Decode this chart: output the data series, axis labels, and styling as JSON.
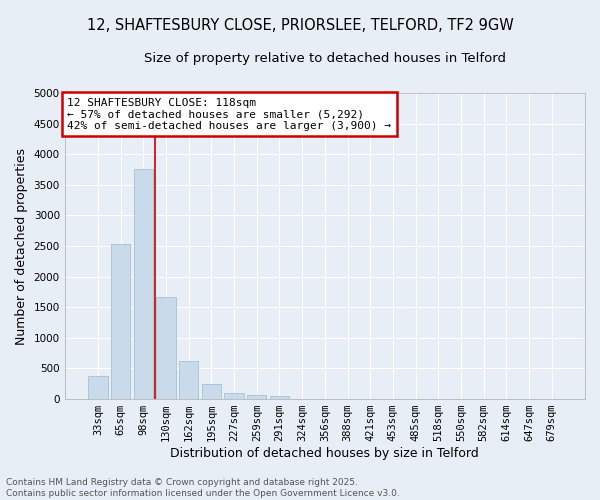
{
  "title_line1": "12, SHAFTESBURY CLOSE, PRIORSLEE, TELFORD, TF2 9GW",
  "title_line2": "Size of property relative to detached houses in Telford",
  "xlabel": "Distribution of detached houses by size in Telford",
  "ylabel": "Number of detached properties",
  "categories": [
    "33sqm",
    "65sqm",
    "98sqm",
    "130sqm",
    "162sqm",
    "195sqm",
    "227sqm",
    "259sqm",
    "291sqm",
    "324sqm",
    "356sqm",
    "388sqm",
    "421sqm",
    "453sqm",
    "485sqm",
    "518sqm",
    "550sqm",
    "582sqm",
    "614sqm",
    "647sqm",
    "679sqm"
  ],
  "values": [
    370,
    2540,
    3760,
    1660,
    620,
    240,
    105,
    60,
    45,
    0,
    0,
    0,
    0,
    0,
    0,
    0,
    0,
    0,
    0,
    0,
    0
  ],
  "bar_color": "#c9daea",
  "bar_edge_color": "#9bb8cc",
  "vline_x_idx": 2,
  "vline_color": "#cc0000",
  "annotation_line1": "12 SHAFTESBURY CLOSE: 118sqm",
  "annotation_line2": "← 57% of detached houses are smaller (5,292)",
  "annotation_line3": "42% of semi-detached houses are larger (3,900) →",
  "annotation_box_color": "#cc0000",
  "annotation_box_bg": "#ffffff",
  "ylim": [
    0,
    5000
  ],
  "yticks": [
    0,
    500,
    1000,
    1500,
    2000,
    2500,
    3000,
    3500,
    4000,
    4500,
    5000
  ],
  "background_color": "#e8eef5",
  "grid_color": "#ffffff",
  "footer_text": "Contains HM Land Registry data © Crown copyright and database right 2025.\nContains public sector information licensed under the Open Government Licence v3.0.",
  "title_fontsize": 10.5,
  "subtitle_fontsize": 9.5,
  "axis_label_fontsize": 9,
  "tick_fontsize": 7.5,
  "footer_fontsize": 6.5,
  "annotation_fontsize": 8
}
